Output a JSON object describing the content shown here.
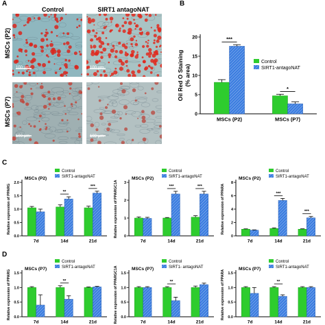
{
  "colors": {
    "control": "#2ecc2e",
    "antago": "#3b7de0",
    "axis": "#000000"
  },
  "panel_a": {
    "letter": "A",
    "col_labels": [
      "Control",
      "SIRT1 antagoNAT"
    ],
    "row_labels": [
      "MSCs (P2)",
      "MSCs (P7)"
    ],
    "scale_bar": "100 μm"
  },
  "panel_letters": {
    "b": "B",
    "c": "C",
    "d": "D"
  },
  "chart_data": [
    {
      "id": "b",
      "type": "bar",
      "title": "",
      "ylabel": "Oil Red O Staining (% area)",
      "ylabel_lines": [
        "Oil Red O Staining",
        "(% area)"
      ],
      "ylim": [
        0,
        20
      ],
      "yticks": [
        0,
        5,
        10,
        15,
        20
      ],
      "categories": [
        "MSCs (P2)",
        "MSCs (P7)"
      ],
      "series": [
        {
          "name": "Control",
          "values": [
            8.2,
            4.7
          ],
          "err": [
            0.7,
            0.4
          ]
        },
        {
          "name": "SIRT1-antagoNAT",
          "values": [
            17.6,
            2.6
          ],
          "err": [
            0.4,
            0.5
          ]
        }
      ],
      "significance": [
        "***",
        "*"
      ],
      "legend_position": "top-right"
    },
    {
      "id": "c1",
      "type": "bar",
      "title": "MSCs (P2)",
      "ylabel": "Relative expression of PPARG",
      "ylim": [
        0,
        2.0
      ],
      "yticks": [
        0.0,
        0.5,
        1.0,
        1.5,
        2.0
      ],
      "categories": [
        "7d",
        "14d",
        "21d"
      ],
      "series": [
        {
          "name": "Control",
          "values": [
            1.05,
            1.08,
            1.05
          ],
          "err": [
            0.05,
            0.08,
            0.06
          ]
        },
        {
          "name": "SIRT1-antagoNAT",
          "values": [
            0.9,
            1.38,
            1.6
          ],
          "err": [
            0.1,
            0.08,
            0.07
          ]
        }
      ],
      "significance": [
        "",
        "**",
        "***"
      ],
      "legend_position": "top-right"
    },
    {
      "id": "c2",
      "type": "bar",
      "title": "MSCs (P2)",
      "ylabel": "Relative expression of PPARGC1A",
      "ylim": [
        0,
        3
      ],
      "yticks": [
        0,
        1,
        2,
        3
      ],
      "categories": [
        "7d",
        "14d",
        "21d"
      ],
      "series": [
        {
          "name": "Control",
          "values": [
            1.0,
            1.0,
            1.05
          ],
          "err": [
            0.06,
            0.03,
            0.08
          ]
        },
        {
          "name": "SIRT1-antagoNAT",
          "values": [
            0.98,
            2.35,
            2.35
          ],
          "err": [
            0.06,
            0.15,
            0.15
          ]
        }
      ],
      "significance": [
        "",
        "***",
        "***"
      ],
      "legend_position": "top-right"
    },
    {
      "id": "c3",
      "type": "bar",
      "title": "MSCs (P2)",
      "ylabel": "Relative expression of PPARA",
      "ylim": [
        0,
        8
      ],
      "yticks": [
        0,
        2,
        4,
        6,
        8
      ],
      "categories": [
        "7d",
        "14d",
        "21d"
      ],
      "series": [
        {
          "name": "Control",
          "values": [
            1.0,
            1.1,
            1.0
          ],
          "err": [
            0.05,
            0.1,
            0.06
          ]
        },
        {
          "name": "SIRT1-antagoNAT",
          "values": [
            0.85,
            5.3,
            2.7
          ],
          "err": [
            0.05,
            0.3,
            0.2
          ]
        }
      ],
      "significance": [
        "",
        "***",
        "***"
      ],
      "legend_position": "top-right"
    },
    {
      "id": "d1",
      "type": "bar",
      "title": "MSCs (P7)",
      "ylabel": "Relative expression of PPARG",
      "ylim": [
        0,
        1.5
      ],
      "yticks": [
        0.0,
        0.5,
        1.0,
        1.5
      ],
      "categories": [
        "7d",
        "14d",
        "21d"
      ],
      "series": [
        {
          "name": "Control",
          "values": [
            1.0,
            1.0,
            1.0
          ],
          "err": [
            0.03,
            0.06,
            0.02
          ]
        },
        {
          "name": "SIRT1-antagoNAT",
          "values": [
            0.4,
            0.6,
            1.02
          ],
          "err": [
            0.35,
            0.12,
            0.02
          ]
        }
      ],
      "significance": [
        "",
        "**",
        ""
      ],
      "legend_position": "top-right"
    },
    {
      "id": "d2",
      "type": "bar",
      "title": "MSCs (P7)",
      "ylabel": "Relative expression of PPARGC1A",
      "ylim": [
        0,
        1.5
      ],
      "yticks": [
        0.0,
        0.5,
        1.0,
        1.5
      ],
      "categories": [
        "7d",
        "14d",
        "21d"
      ],
      "series": [
        {
          "name": "Control",
          "values": [
            1.0,
            1.0,
            1.0
          ],
          "err": [
            0.03,
            0.03,
            0.05
          ]
        },
        {
          "name": "SIRT1- antagoNAT",
          "values": [
            1.0,
            0.55,
            1.1
          ],
          "err": [
            0.03,
            0.12,
            0.05
          ]
        }
      ],
      "significance": [
        "",
        "**",
        ""
      ],
      "legend_position": "top-right"
    },
    {
      "id": "d3",
      "type": "bar",
      "title": "MSCs (P7)",
      "ylabel": "Relative expression of PPARA",
      "ylim": [
        0,
        1.5
      ],
      "yticks": [
        0.0,
        0.5,
        1.0,
        1.5
      ],
      "categories": [
        "7d",
        "14d",
        "21d"
      ],
      "series": [
        {
          "name": "Control",
          "values": [
            1.0,
            1.0,
            1.0
          ],
          "err": [
            0.03,
            0.03,
            0.03
          ]
        },
        {
          "name": "SIRT1-antagoNAT",
          "values": [
            0.8,
            0.7,
            1.0
          ],
          "err": [
            0.2,
            0.05,
            0.03
          ]
        }
      ],
      "significance": [
        "",
        "**",
        ""
      ],
      "legend_position": "top-right"
    }
  ]
}
